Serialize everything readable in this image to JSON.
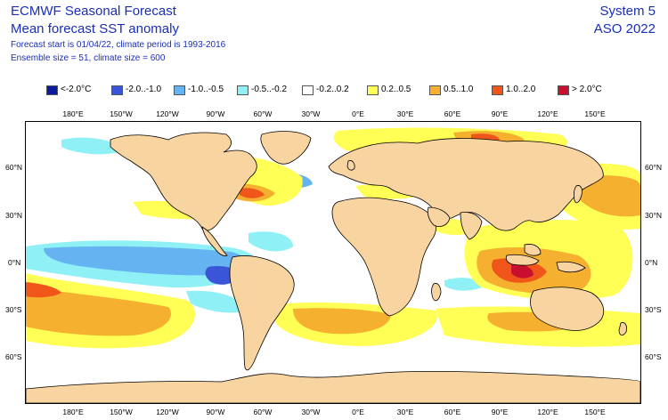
{
  "header": {
    "title": "ECMWF Seasonal Forecast",
    "subtitle": "Mean forecast SST anomaly",
    "forecast_info": "Forecast start is 01/04/22, climate period is 1993-2016",
    "ensemble_info": "Ensemble size = 51, climate size = 600",
    "system": "System 5",
    "period": "ASO 2022"
  },
  "legend": [
    {
      "label": "<-2.0°C",
      "color": "#0b1a9e"
    },
    {
      "label": "-2.0..-1.0",
      "color": "#3a55d8"
    },
    {
      "label": "-1.0..-0.5",
      "color": "#66b3f2"
    },
    {
      "label": "-0.5..-0.2",
      "color": "#8ff0f5"
    },
    {
      "label": "-0.2..0.2",
      "color": "#ffffff"
    },
    {
      "label": "0.2..0.5",
      "color": "#ffff55"
    },
    {
      "label": "0.5..1.0",
      "color": "#f5b030"
    },
    {
      "label": "1.0..2.0",
      "color": "#f0561a"
    },
    {
      "label": "> 2.0°C",
      "color": "#c8102e"
    }
  ],
  "axes": {
    "lon_labels": [
      "180°E",
      "150°W",
      "120°W",
      "90°W",
      "60°W",
      "30°W",
      "0°E",
      "30°E",
      "60°E",
      "90°E",
      "120°E",
      "150°E"
    ],
    "lat_labels": [
      "60°N",
      "30°N",
      "0°N",
      "30°S",
      "60°S"
    ]
  },
  "map": {
    "land_color": "#f8d5a0",
    "coast_color": "#000000"
  }
}
